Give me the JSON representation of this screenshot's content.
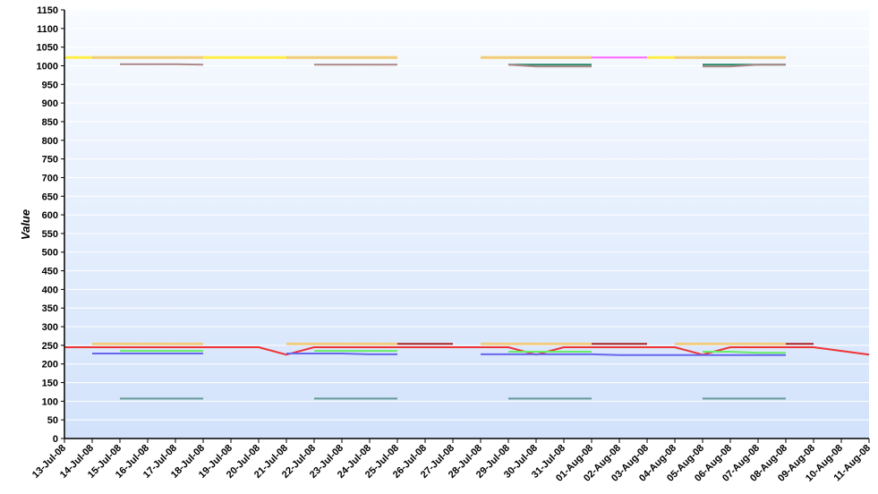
{
  "chart_data": {
    "type": "line",
    "title": "",
    "xlabel": "",
    "ylabel": "Value",
    "ylim": [
      0,
      1150
    ],
    "ytick_step": 50,
    "grid": true,
    "legend": "none",
    "categories": [
      "13-Jul-08",
      "14-Jul-08",
      "15-Jul-08",
      "16-Jul-08",
      "17-Jul-08",
      "18-Jul-08",
      "19-Jul-08",
      "20-Jul-08",
      "21-Jul-08",
      "22-Jul-08",
      "23-Jul-08",
      "24-Jul-08",
      "25-Jul-08",
      "26-Jul-08",
      "27-Jul-08",
      "28-Jul-08",
      "29-Jul-08",
      "30-Jul-08",
      "31-Jul-08",
      "01-Aug-08",
      "02-Aug-08",
      "03-Aug-08",
      "04-Aug-08",
      "05-Aug-08",
      "06-Aug-08",
      "07-Aug-08",
      "08-Aug-08",
      "09-Aug-08",
      "10-Aug-08",
      "11-Aug-08"
    ],
    "colors": {
      "plot_top": "#f8fbff",
      "plot_bottom": "#d2e2fb",
      "grid": "#ffffff",
      "axis": "#000000"
    },
    "series": [
      {
        "color": "#ffee44",
        "width": 3,
        "values": [
          1022,
          1022,
          1022,
          1022,
          1022,
          1022,
          1022,
          1022,
          1022,
          1022,
          1022,
          1022,
          1022,
          null,
          null,
          1022,
          1022,
          1022,
          1022,
          1022,
          null,
          1022,
          1022,
          1022,
          1022,
          1022,
          1022,
          null,
          null,
          null
        ]
      },
      {
        "color": "#f0cc80",
        "width": 3,
        "values": [
          null,
          1022,
          1022,
          1022,
          1022,
          1022,
          null,
          null,
          1022,
          1022,
          1022,
          1022,
          1022,
          null,
          null,
          1022,
          1022,
          1022,
          1022,
          1022,
          null,
          null,
          1022,
          1022,
          1022,
          1022,
          1022,
          null,
          null,
          null
        ]
      },
      {
        "color": "#ff66ff",
        "width": 2,
        "values": [
          null,
          null,
          null,
          null,
          null,
          null,
          null,
          null,
          null,
          null,
          null,
          null,
          null,
          null,
          null,
          null,
          null,
          null,
          null,
          1022,
          1022,
          1022,
          null,
          null,
          null,
          null,
          null,
          null,
          null,
          null
        ]
      },
      {
        "color": "#228866",
        "width": 2,
        "values": [
          null,
          null,
          null,
          null,
          null,
          null,
          null,
          null,
          null,
          null,
          null,
          null,
          null,
          null,
          null,
          null,
          1003,
          1003,
          1003,
          1003,
          null,
          null,
          null,
          1003,
          1003,
          1003,
          1003,
          null,
          null,
          null
        ]
      },
      {
        "color": "#aa8888",
        "width": 2,
        "values": [
          null,
          null,
          1004,
          1004,
          1004,
          1003,
          null,
          null,
          null,
          1003,
          1003,
          1003,
          1003,
          null,
          null,
          null,
          1003,
          998,
          998,
          998,
          null,
          null,
          null,
          998,
          998,
          1003,
          1003,
          null,
          null,
          null
        ]
      },
      {
        "color": "#f0cc80",
        "width": 3,
        "values": [
          null,
          254,
          254,
          254,
          254,
          254,
          null,
          null,
          254,
          254,
          254,
          254,
          254,
          null,
          null,
          254,
          254,
          254,
          254,
          254,
          null,
          null,
          254,
          254,
          254,
          254,
          254,
          null,
          null,
          null
        ]
      },
      {
        "color": "#aa2222",
        "width": 2,
        "values": [
          null,
          null,
          null,
          null,
          null,
          null,
          null,
          null,
          null,
          null,
          null,
          null,
          254,
          254,
          254,
          null,
          null,
          null,
          null,
          254,
          254,
          254,
          null,
          null,
          null,
          null,
          254,
          254,
          null,
          null
        ]
      },
      {
        "color": "#ee3333",
        "width": 2,
        "values": [
          245,
          245,
          245,
          245,
          245,
          245,
          245,
          245,
          225,
          245,
          245,
          245,
          245,
          245,
          245,
          245,
          245,
          225,
          245,
          245,
          245,
          245,
          245,
          225,
          245,
          245,
          245,
          245,
          235,
          225
        ]
      },
      {
        "color": "#66ee66",
        "width": 2,
        "values": [
          null,
          null,
          235,
          235,
          235,
          235,
          null,
          null,
          null,
          235,
          235,
          235,
          235,
          null,
          null,
          null,
          233,
          233,
          233,
          233,
          null,
          null,
          null,
          233,
          233,
          230,
          230,
          null,
          null,
          null
        ]
      },
      {
        "color": "#6666ee",
        "width": 2,
        "values": [
          null,
          228,
          228,
          228,
          228,
          228,
          null,
          null,
          228,
          228,
          228,
          226,
          226,
          null,
          null,
          226,
          226,
          226,
          226,
          226,
          224,
          224,
          224,
          224,
          224,
          224,
          224,
          null,
          null,
          null
        ]
      },
      {
        "color": "#669999",
        "width": 2,
        "values": [
          null,
          null,
          107,
          107,
          107,
          107,
          null,
          null,
          null,
          107,
          107,
          107,
          107,
          null,
          null,
          null,
          107,
          107,
          107,
          107,
          null,
          null,
          null,
          107,
          107,
          107,
          107,
          null,
          null,
          null
        ]
      }
    ]
  }
}
